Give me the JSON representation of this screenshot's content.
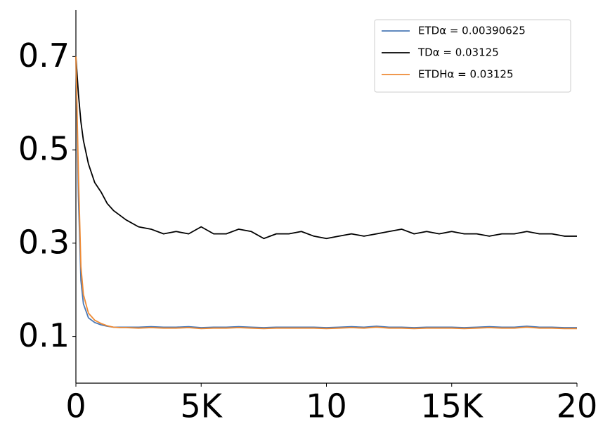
{
  "chart_data": {
    "type": "line",
    "x": [
      0,
      100,
      200,
      300,
      500,
      750,
      1000,
      1250,
      1500,
      1750,
      2000,
      2500,
      3000,
      3500,
      4000,
      4500,
      5000,
      5500,
      6000,
      6500,
      7000,
      7500,
      8000,
      8500,
      9000,
      9500,
      10000,
      10500,
      11000,
      11500,
      12000,
      12500,
      13000,
      13500,
      14000,
      14500,
      15000,
      15500,
      16000,
      16500,
      17000,
      17500,
      18000,
      18500,
      19000,
      19500,
      20000
    ],
    "series": [
      {
        "name": "ETDα =  0.00390625",
        "color": "#4a78b5",
        "values": [
          0.7,
          0.4,
          0.22,
          0.17,
          0.14,
          0.13,
          0.125,
          0.122,
          0.12,
          0.12,
          0.12,
          0.12,
          0.121,
          0.12,
          0.12,
          0.121,
          0.119,
          0.12,
          0.12,
          0.121,
          0.12,
          0.119,
          0.12,
          0.12,
          0.12,
          0.12,
          0.119,
          0.12,
          0.121,
          0.12,
          0.122,
          0.12,
          0.12,
          0.119,
          0.12,
          0.12,
          0.12,
          0.119,
          0.12,
          0.121,
          0.12,
          0.12,
          0.122,
          0.12,
          0.12,
          0.119,
          0.119
        ]
      },
      {
        "name": "TDα =  0.03125",
        "color": "#000000",
        "values": [
          0.7,
          0.62,
          0.56,
          0.52,
          0.47,
          0.43,
          0.41,
          0.385,
          0.37,
          0.36,
          0.35,
          0.335,
          0.33,
          0.32,
          0.325,
          0.32,
          0.335,
          0.32,
          0.32,
          0.33,
          0.325,
          0.31,
          0.32,
          0.32,
          0.325,
          0.315,
          0.31,
          0.315,
          0.32,
          0.315,
          0.32,
          0.325,
          0.33,
          0.32,
          0.325,
          0.32,
          0.325,
          0.32,
          0.32,
          0.315,
          0.32,
          0.32,
          0.325,
          0.32,
          0.32,
          0.315,
          0.315
        ]
      },
      {
        "name": "ETDHα =  0.03125",
        "color": "#ee8a34",
        "values": [
          0.7,
          0.45,
          0.25,
          0.19,
          0.15,
          0.135,
          0.128,
          0.123,
          0.12,
          0.119,
          0.119,
          0.118,
          0.119,
          0.118,
          0.118,
          0.119,
          0.117,
          0.118,
          0.118,
          0.119,
          0.118,
          0.117,
          0.118,
          0.118,
          0.118,
          0.118,
          0.117,
          0.118,
          0.119,
          0.118,
          0.12,
          0.118,
          0.118,
          0.117,
          0.118,
          0.118,
          0.118,
          0.117,
          0.118,
          0.119,
          0.118,
          0.118,
          0.12,
          0.118,
          0.118,
          0.117,
          0.117
        ]
      }
    ],
    "xlim": [
      0,
      20000
    ],
    "xticks": [
      0,
      {
        "value": 5000,
        "label": "5K"
      },
      {
        "value": 10000,
        "label": "10"
      },
      {
        "value": 15000,
        "label": "15K"
      },
      {
        "value": 20000,
        "label": "20"
      }
    ],
    "ylim": [
      0,
      0.8
    ],
    "yticks": [
      0.1,
      0.3,
      0.5,
      0.7
    ],
    "legend": "upper right"
  }
}
